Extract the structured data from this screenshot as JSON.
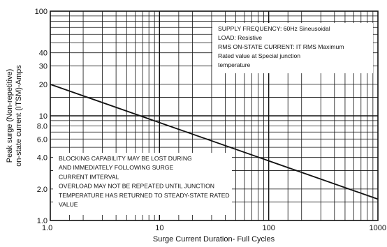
{
  "chart_data": {
    "type": "line",
    "x_scale": "log",
    "y_scale": "log",
    "xlim": [
      1,
      1000
    ],
    "ylim": [
      1,
      100
    ],
    "grid": true,
    "xlabel": "Surge Current Duration- Full Cycles",
    "ylabel_lines": [
      "Peak surge (Non-repetitive)",
      "on-state current (ITSM)-Amps"
    ],
    "x_ticks": [
      {
        "value": 1,
        "label": "1.0"
      },
      {
        "value": 10,
        "label": "10"
      },
      {
        "value": 100,
        "label": "100"
      },
      {
        "value": 1000,
        "label": "1000"
      }
    ],
    "y_ticks": [
      {
        "value": 1,
        "label": "1.0"
      },
      {
        "value": 2,
        "label": "2.0"
      },
      {
        "value": 4,
        "label": "4.0"
      },
      {
        "value": 6,
        "label": "6.0"
      },
      {
        "value": 8,
        "label": "8.0"
      },
      {
        "value": 10,
        "label": "10"
      },
      {
        "value": 20,
        "label": "20"
      },
      {
        "value": 30,
        "label": "30"
      },
      {
        "value": 40,
        "label": "40"
      },
      {
        "value": 100,
        "label": "100"
      }
    ],
    "series": [
      {
        "x": [
          1,
          1000
        ],
        "y": [
          20,
          1.6
        ]
      }
    ],
    "annotations": [
      {
        "position": "top-right",
        "lines": [
          "SUPPLY FREQUENCY: 60Hz Sineusoidal",
          "LOAD: Resistive",
          "RMS ON-STATE CURRENT: IT RMS Maximum",
          "Rated value at Special junction",
          "temperature"
        ]
      },
      {
        "position": "bottom-left",
        "lines": [
          "BLOCKING CAPABILITY MAY BE LOST DURING",
          "AND IMMEDIATELY FOLLOWING SURGE",
          "CURRENT IMTERVAL",
          "OVERLOAD MAY NOT BE REPEATED UNTIL JUNCTION",
          "TEMPERATURE HAS RETURNED TO STEADY-STATE RATED",
          "VALUE"
        ]
      }
    ]
  }
}
